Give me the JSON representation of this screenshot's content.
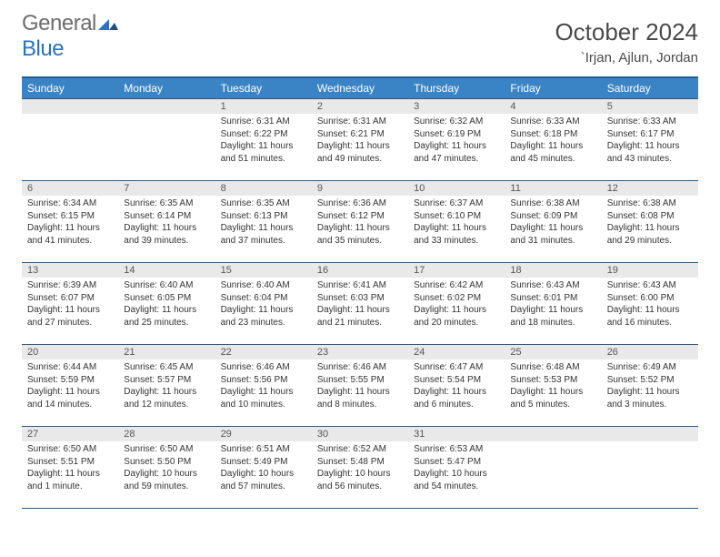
{
  "logo": {
    "general": "General",
    "blue": "Blue"
  },
  "header": {
    "title": "October 2024",
    "location": "`Irjan, Ajlun, Jordan"
  },
  "colors": {
    "header_bg": "#3a84c6",
    "header_border": "#2c5a88",
    "daynum_bg": "#e9e9e9",
    "text": "#333333",
    "logo_gray": "#6d6d6d",
    "logo_blue": "#2c72b8"
  },
  "calendar": {
    "day_names": [
      "Sunday",
      "Monday",
      "Tuesday",
      "Wednesday",
      "Thursday",
      "Friday",
      "Saturday"
    ],
    "weeks": [
      [
        null,
        null,
        {
          "n": "1",
          "sunrise": "6:31 AM",
          "sunset": "6:22 PM",
          "daylight": "11 hours and 51 minutes."
        },
        {
          "n": "2",
          "sunrise": "6:31 AM",
          "sunset": "6:21 PM",
          "daylight": "11 hours and 49 minutes."
        },
        {
          "n": "3",
          "sunrise": "6:32 AM",
          "sunset": "6:19 PM",
          "daylight": "11 hours and 47 minutes."
        },
        {
          "n": "4",
          "sunrise": "6:33 AM",
          "sunset": "6:18 PM",
          "daylight": "11 hours and 45 minutes."
        },
        {
          "n": "5",
          "sunrise": "6:33 AM",
          "sunset": "6:17 PM",
          "daylight": "11 hours and 43 minutes."
        }
      ],
      [
        {
          "n": "6",
          "sunrise": "6:34 AM",
          "sunset": "6:15 PM",
          "daylight": "11 hours and 41 minutes."
        },
        {
          "n": "7",
          "sunrise": "6:35 AM",
          "sunset": "6:14 PM",
          "daylight": "11 hours and 39 minutes."
        },
        {
          "n": "8",
          "sunrise": "6:35 AM",
          "sunset": "6:13 PM",
          "daylight": "11 hours and 37 minutes."
        },
        {
          "n": "9",
          "sunrise": "6:36 AM",
          "sunset": "6:12 PM",
          "daylight": "11 hours and 35 minutes."
        },
        {
          "n": "10",
          "sunrise": "6:37 AM",
          "sunset": "6:10 PM",
          "daylight": "11 hours and 33 minutes."
        },
        {
          "n": "11",
          "sunrise": "6:38 AM",
          "sunset": "6:09 PM",
          "daylight": "11 hours and 31 minutes."
        },
        {
          "n": "12",
          "sunrise": "6:38 AM",
          "sunset": "6:08 PM",
          "daylight": "11 hours and 29 minutes."
        }
      ],
      [
        {
          "n": "13",
          "sunrise": "6:39 AM",
          "sunset": "6:07 PM",
          "daylight": "11 hours and 27 minutes."
        },
        {
          "n": "14",
          "sunrise": "6:40 AM",
          "sunset": "6:05 PM",
          "daylight": "11 hours and 25 minutes."
        },
        {
          "n": "15",
          "sunrise": "6:40 AM",
          "sunset": "6:04 PM",
          "daylight": "11 hours and 23 minutes."
        },
        {
          "n": "16",
          "sunrise": "6:41 AM",
          "sunset": "6:03 PM",
          "daylight": "11 hours and 21 minutes."
        },
        {
          "n": "17",
          "sunrise": "6:42 AM",
          "sunset": "6:02 PM",
          "daylight": "11 hours and 20 minutes."
        },
        {
          "n": "18",
          "sunrise": "6:43 AM",
          "sunset": "6:01 PM",
          "daylight": "11 hours and 18 minutes."
        },
        {
          "n": "19",
          "sunrise": "6:43 AM",
          "sunset": "6:00 PM",
          "daylight": "11 hours and 16 minutes."
        }
      ],
      [
        {
          "n": "20",
          "sunrise": "6:44 AM",
          "sunset": "5:59 PM",
          "daylight": "11 hours and 14 minutes."
        },
        {
          "n": "21",
          "sunrise": "6:45 AM",
          "sunset": "5:57 PM",
          "daylight": "11 hours and 12 minutes."
        },
        {
          "n": "22",
          "sunrise": "6:46 AM",
          "sunset": "5:56 PM",
          "daylight": "11 hours and 10 minutes."
        },
        {
          "n": "23",
          "sunrise": "6:46 AM",
          "sunset": "5:55 PM",
          "daylight": "11 hours and 8 minutes."
        },
        {
          "n": "24",
          "sunrise": "6:47 AM",
          "sunset": "5:54 PM",
          "daylight": "11 hours and 6 minutes."
        },
        {
          "n": "25",
          "sunrise": "6:48 AM",
          "sunset": "5:53 PM",
          "daylight": "11 hours and 5 minutes."
        },
        {
          "n": "26",
          "sunrise": "6:49 AM",
          "sunset": "5:52 PM",
          "daylight": "11 hours and 3 minutes."
        }
      ],
      [
        {
          "n": "27",
          "sunrise": "6:50 AM",
          "sunset": "5:51 PM",
          "daylight": "11 hours and 1 minute."
        },
        {
          "n": "28",
          "sunrise": "6:50 AM",
          "sunset": "5:50 PM",
          "daylight": "10 hours and 59 minutes."
        },
        {
          "n": "29",
          "sunrise": "6:51 AM",
          "sunset": "5:49 PM",
          "daylight": "10 hours and 57 minutes."
        },
        {
          "n": "30",
          "sunrise": "6:52 AM",
          "sunset": "5:48 PM",
          "daylight": "10 hours and 56 minutes."
        },
        {
          "n": "31",
          "sunrise": "6:53 AM",
          "sunset": "5:47 PM",
          "daylight": "10 hours and 54 minutes."
        },
        null,
        null
      ]
    ],
    "labels": {
      "sunrise": "Sunrise:",
      "sunset": "Sunset:",
      "daylight": "Daylight:"
    }
  }
}
